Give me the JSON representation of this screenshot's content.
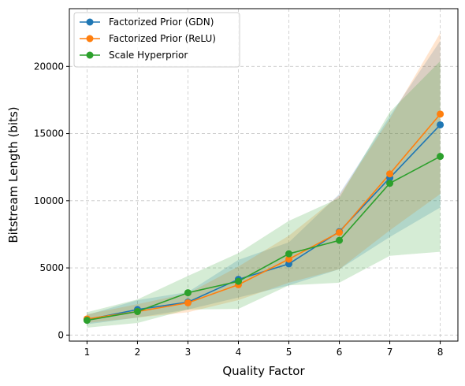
{
  "chart_data": {
    "type": "line",
    "xlabel": "Quality Factor",
    "ylabel": "Bitstream Length (bits)",
    "x": [
      1,
      2,
      3,
      4,
      5,
      6,
      7,
      8
    ],
    "xlim": [
      0.65,
      8.35
    ],
    "ylim": [
      -450,
      24300
    ],
    "xticks": [
      1,
      2,
      3,
      4,
      5,
      6,
      7,
      8
    ],
    "yticks": [
      0,
      5000,
      10000,
      15000,
      20000
    ],
    "ytick_labels": [
      "0",
      "5000",
      "10000",
      "15000",
      "20000"
    ],
    "grid": true,
    "legend_position": "top-left",
    "series": [
      {
        "name": "Factorized Prior (GDN)",
        "color": "#1f77b4",
        "values": [
          1150,
          1900,
          2450,
          4150,
          5300,
          7700,
          11700,
          15650
        ],
        "band_low": [
          800,
          1300,
          1900,
          2800,
          3700,
          4900,
          7300,
          9500
        ],
        "band_high": [
          1500,
          2600,
          3200,
          5600,
          6900,
          10500,
          16300,
          21900
        ]
      },
      {
        "name": "Factorized Prior (ReLU)",
        "color": "#ff7f0e",
        "values": [
          1200,
          1750,
          2400,
          3750,
          5650,
          7650,
          12000,
          16450
        ],
        "band_low": [
          900,
          1300,
          1700,
          2600,
          3900,
          4900,
          7800,
          10500
        ],
        "band_high": [
          1550,
          2300,
          3100,
          5100,
          7400,
          10400,
          16100,
          22500
        ]
      },
      {
        "name": "Scale Hyperprior",
        "color": "#2ca02c",
        "values": [
          1100,
          1750,
          3150,
          4000,
          6050,
          7050,
          11300,
          13300
        ],
        "band_low": [
          550,
          900,
          1900,
          1950,
          3700,
          3900,
          5900,
          6200
        ],
        "band_high": [
          1700,
          2650,
          4400,
          6100,
          8500,
          10200,
          16600,
          20400
        ]
      }
    ]
  }
}
